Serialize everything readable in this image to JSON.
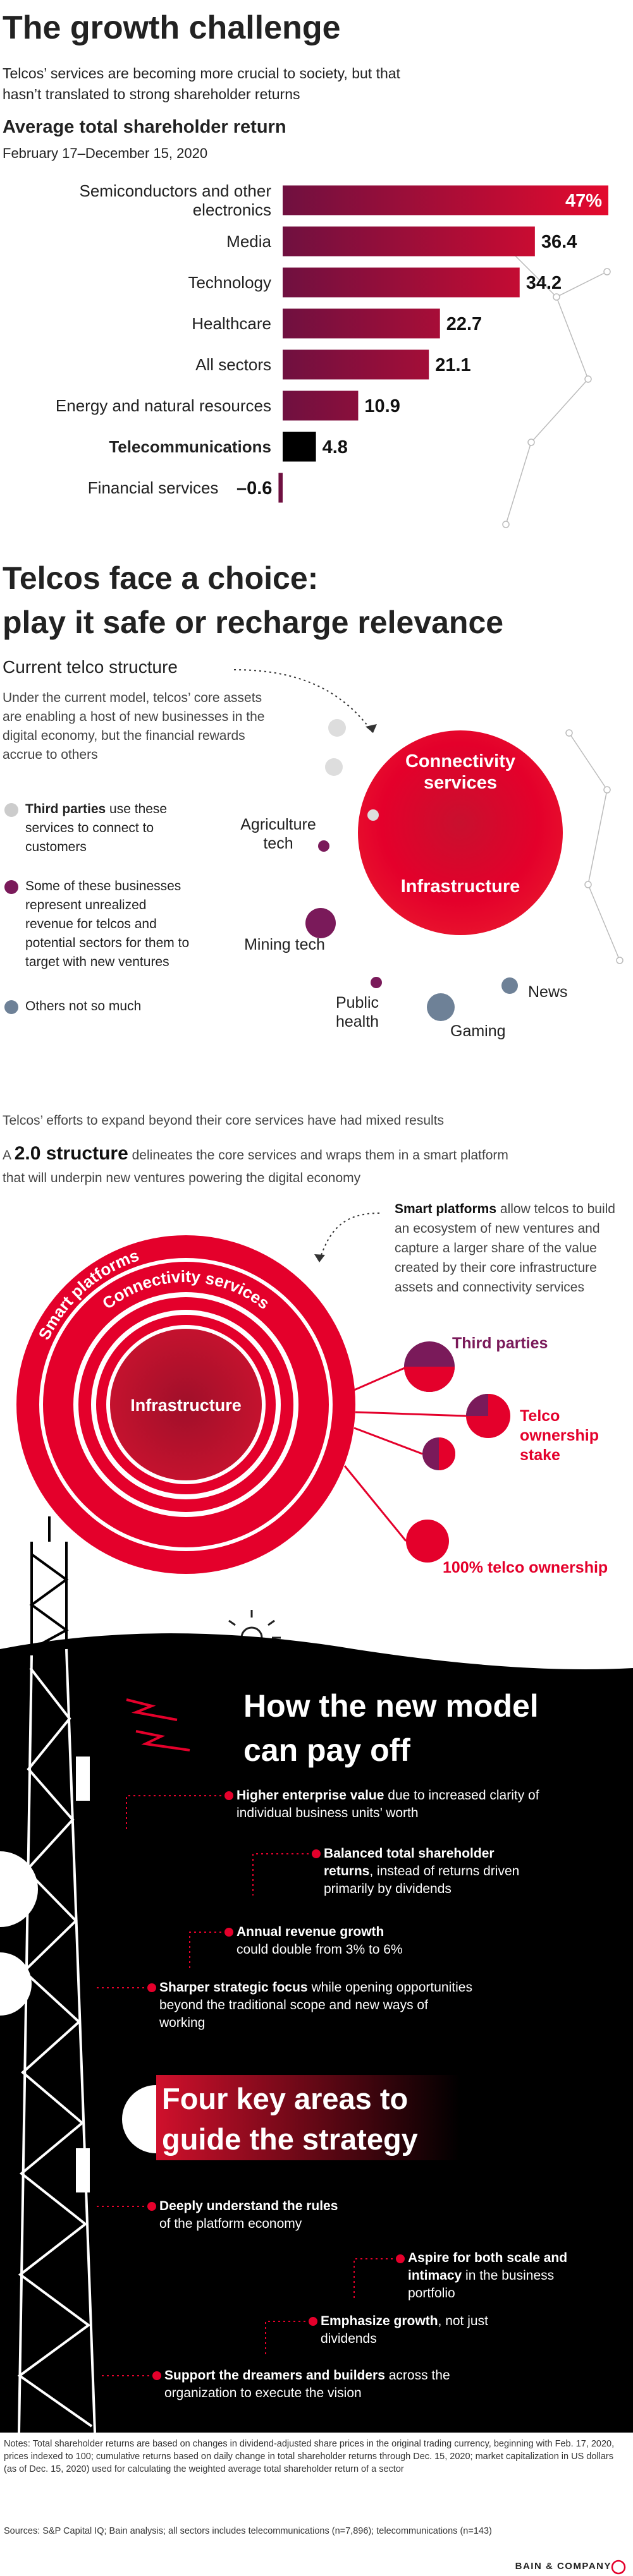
{
  "header": {
    "title": "The growth challenge",
    "subtitle": "Telcos’ services are becoming more crucial to society, but that hasn’t translated to strong shareholder returns"
  },
  "chart_data": {
    "type": "bar",
    "orientation": "horizontal",
    "title": "Average total shareholder return",
    "subtitle": "February 17–December 15, 2020",
    "categories": [
      "Semiconductors and other electronics",
      "Media",
      "Technology",
      "Healthcare",
      "All sectors",
      "Energy and natural resources",
      "Telecommunications",
      "Financial services"
    ],
    "values": [
      47,
      36.4,
      34.2,
      22.7,
      21.1,
      10.9,
      4.8,
      -0.6
    ],
    "value_labels": [
      "47%",
      "36.4",
      "34.2",
      "22.7",
      "21.1",
      "10.9",
      "4.8",
      "–0.6"
    ],
    "color": "#e30a2e",
    "highlight_index": 6,
    "highlight_color": "#000000"
  },
  "choice": {
    "title_lines": [
      "Telcos face a choice:",
      "play it safe or recharge relevance"
    ],
    "heading": "Current telco structure",
    "body": "Under the current model, telcos’ core assets are enabling a host of new businesses in the digital economy, but the financial rewards accrue to others",
    "core": [
      "Connectivity services",
      "Infrastructure"
    ],
    "legend": [
      {
        "bold": "Third parties",
        "text": "use these services to connect to customers"
      },
      {
        "text": "Some of these businesses represent unrealized revenue for telcos and potential sectors for them to target with new ventures"
      },
      {
        "text": "Others not so much"
      }
    ],
    "sectors": [
      "Agriculture tech",
      "Mining tech",
      "Public health",
      "Gaming",
      "News"
    ]
  },
  "structure": {
    "intro": "Telcos’ efforts to expand beyond their core services have had mixed results",
    "prefix": "A",
    "bold": "2.0 structure",
    "text": "delineates the core services and wraps them in a smart platform that will underpin new ventures powering the digital economy",
    "smart_bold": "Smart platforms",
    "smart_text": "allow telcos to build an ecosystem of new ventures and capture a larger share of the value created by their core infrastructure assets and connectivity services",
    "rings": [
      "Smart platforms",
      "Connectivity services",
      "Infrastructure"
    ],
    "ownership": [
      "Third parties",
      "Telco ownership stake",
      "100% telco ownership"
    ]
  },
  "payoff": {
    "title_lines": [
      "How the new model",
      "can pay off"
    ],
    "items": [
      {
        "bold": "Higher enterprise value",
        "text": "due to increased clarity of individual business units’ worth"
      },
      {
        "bold": "Balanced total shareholder returns",
        "text": ", instead of returns driven primarily by dividends"
      },
      {
        "bold": "Annual revenue growth",
        "text": "could double from 3% to 6%"
      },
      {
        "bold": "Sharper strategic focus",
        "text": "while opening opportunities beyond the traditional scope and new ways of working"
      }
    ]
  },
  "strategy": {
    "title_lines": [
      "Four key areas to",
      "guide the strategy"
    ],
    "items": [
      {
        "bold": "Deeply understand the rules",
        "text": "of the platform economy"
      },
      {
        "bold": "Aspire for both scale and intimacy",
        "text": "in the business portfolio"
      },
      {
        "bold": "Emphasize growth",
        "text": ", not just dividends"
      },
      {
        "bold": "Support the dreamers and builders",
        "text": "across the organization to execute the vision"
      }
    ]
  },
  "footer": {
    "notes": "Notes: Total shareholder returns are based on changes in dividend-adjusted share prices in the original trading currency, beginning with Feb. 17, 2020, prices indexed to 100; cumulative returns based on daily change in total shareholder returns through Dec. 15, 2020; market capitalization in US dollars (as of Dec. 15, 2020) used for calculating the weighted average total shareholder return of a sector",
    "sources": "Sources: S&P Capital IQ; Bain analysis; all sectors includes telecommunications (n=7,896); telecommunications (n=143)",
    "brand": "BAIN & COMPANY"
  }
}
